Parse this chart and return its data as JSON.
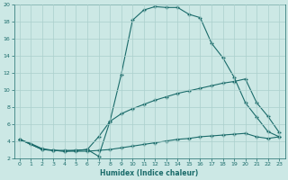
{
  "xlabel": "Humidex (Indice chaleur)",
  "bg_color": "#cce8e5",
  "grid_color": "#aacfcc",
  "line_color": "#1a6b6a",
  "xlim": [
    -0.5,
    23.5
  ],
  "ylim": [
    2,
    20
  ],
  "xticks": [
    0,
    1,
    2,
    3,
    4,
    5,
    6,
    7,
    8,
    9,
    10,
    11,
    12,
    13,
    14,
    15,
    16,
    17,
    18,
    19,
    20,
    21,
    22,
    23
  ],
  "yticks": [
    2,
    4,
    6,
    8,
    10,
    12,
    14,
    16,
    18,
    20
  ],
  "line1_x": [
    0,
    1,
    2,
    3,
    4,
    5,
    6,
    7,
    8,
    9,
    10,
    11,
    12,
    13,
    14,
    15,
    16,
    17,
    18,
    19,
    20,
    21,
    22,
    23
  ],
  "line1_y": [
    4.2,
    3.7,
    3.1,
    2.9,
    2.9,
    2.9,
    3.0,
    2.2,
    6.3,
    11.8,
    18.2,
    19.4,
    19.8,
    19.7,
    19.7,
    18.9,
    18.5,
    15.5,
    13.8,
    11.5,
    8.5,
    6.8,
    5.1,
    4.5
  ],
  "line2_x": [
    0,
    2,
    3,
    4,
    5,
    6,
    7,
    8,
    9,
    10,
    11,
    12,
    13,
    14,
    15,
    16,
    17,
    18,
    19,
    20,
    21,
    22,
    23
  ],
  "line2_y": [
    4.2,
    3.0,
    2.9,
    2.8,
    2.9,
    3.0,
    4.5,
    6.3,
    7.2,
    7.8,
    8.3,
    8.8,
    9.2,
    9.6,
    9.9,
    10.2,
    10.5,
    10.8,
    11.0,
    11.3,
    8.5,
    6.9,
    5.0
  ],
  "line3_x": [
    0,
    2,
    3,
    4,
    5,
    6,
    7,
    8,
    9,
    10,
    11,
    12,
    13,
    14,
    15,
    16,
    17,
    18,
    19,
    20,
    21,
    22,
    23
  ],
  "line3_y": [
    4.2,
    3.0,
    2.9,
    2.8,
    2.8,
    2.8,
    2.9,
    3.0,
    3.2,
    3.4,
    3.6,
    3.8,
    4.0,
    4.2,
    4.3,
    4.5,
    4.6,
    4.7,
    4.8,
    4.9,
    4.5,
    4.3,
    4.5
  ]
}
